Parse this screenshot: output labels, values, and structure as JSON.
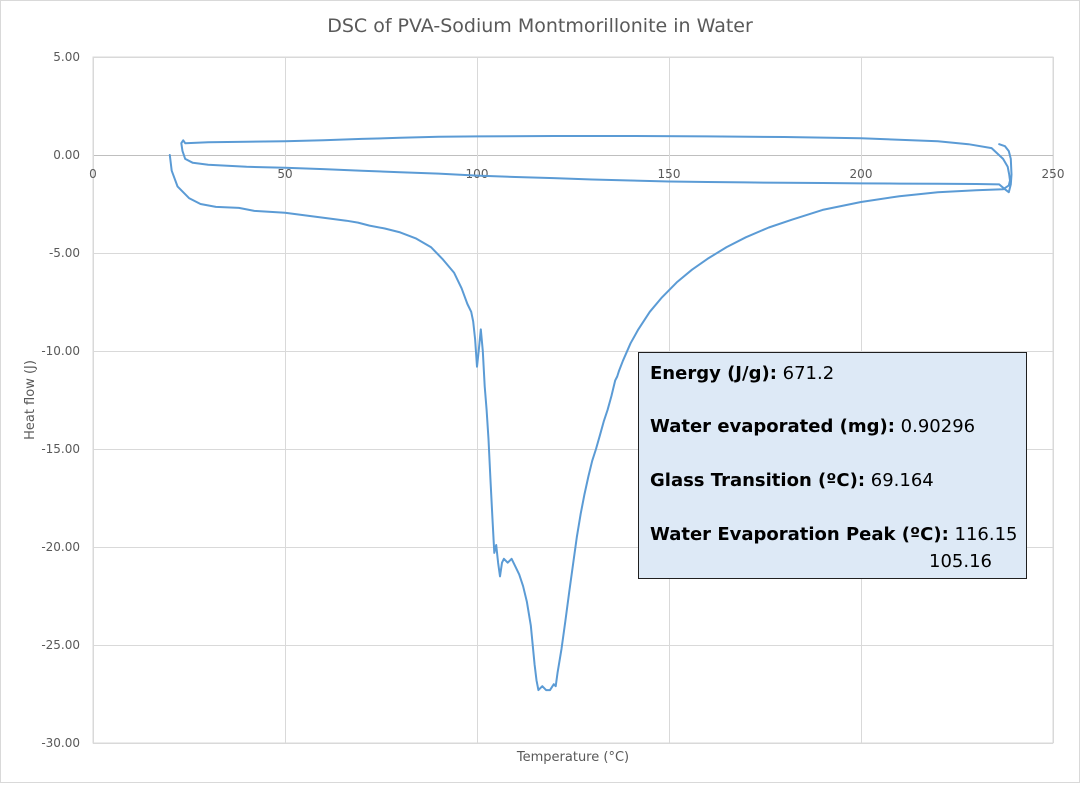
{
  "chart_data": {
    "type": "line",
    "title": "DSC of PVA-Sodium Montmorillonite in Water",
    "xlabel": "Temperature (°C)",
    "ylabel": "Heat flow (J)",
    "xlim": [
      0,
      250
    ],
    "ylim": [
      -30,
      5
    ],
    "x_ticks": [
      0,
      50,
      100,
      150,
      200,
      250
    ],
    "y_ticks": [
      5,
      0,
      -5,
      -10,
      -15,
      -20,
      -25,
      -30
    ],
    "y_tick_labels": [
      "5.00",
      "0.00",
      "-5.00",
      "-10.00",
      "-15.00",
      "-20.00",
      "-25.00",
      "-30.00"
    ],
    "grid": true,
    "line_color": "#5b9bd5",
    "series": [
      {
        "points": [
          [
            20,
            0
          ],
          [
            20.5,
            -0.8
          ],
          [
            22,
            -1.6
          ],
          [
            25,
            -2.2
          ],
          [
            28,
            -2.5
          ],
          [
            32,
            -2.65
          ],
          [
            38,
            -2.7
          ],
          [
            42,
            -2.85
          ],
          [
            50,
            -2.95
          ],
          [
            56,
            -3.1
          ],
          [
            62,
            -3.25
          ],
          [
            66,
            -3.35
          ],
          [
            69,
            -3.45
          ],
          [
            72,
            -3.6
          ],
          [
            76,
            -3.75
          ],
          [
            80,
            -3.95
          ],
          [
            84,
            -4.25
          ],
          [
            88,
            -4.7
          ],
          [
            91,
            -5.3
          ],
          [
            94,
            -6.0
          ],
          [
            96,
            -6.8
          ],
          [
            97.5,
            -7.6
          ],
          [
            98.5,
            -8.0
          ],
          [
            99,
            -8.5
          ],
          [
            99.5,
            -9.4
          ],
          [
            100,
            -10.8
          ],
          [
            100.5,
            -9.9
          ],
          [
            101,
            -8.9
          ],
          [
            101.5,
            -10.0
          ],
          [
            102,
            -11.8
          ],
          [
            102.5,
            -13.0
          ],
          [
            103,
            -14.5
          ],
          [
            103.5,
            -16.5
          ],
          [
            104,
            -18.5
          ],
          [
            104.5,
            -20.3
          ],
          [
            105,
            -19.9
          ],
          [
            105.5,
            -20.8
          ],
          [
            106,
            -21.5
          ],
          [
            106.5,
            -20.8
          ],
          [
            107,
            -20.6
          ],
          [
            108,
            -20.8
          ],
          [
            109,
            -20.6
          ],
          [
            110,
            -21.0
          ],
          [
            111,
            -21.4
          ],
          [
            112,
            -22.0
          ],
          [
            113,
            -22.8
          ],
          [
            114,
            -24.0
          ],
          [
            114.5,
            -25.0
          ],
          [
            115,
            -26.0
          ],
          [
            115.5,
            -26.8
          ],
          [
            116,
            -27.3
          ],
          [
            116.5,
            -27.2
          ],
          [
            117,
            -27.1
          ],
          [
            118,
            -27.3
          ],
          [
            119,
            -27.3
          ],
          [
            120,
            -27.0
          ],
          [
            120.5,
            -27.1
          ],
          [
            121,
            -26.4
          ],
          [
            122,
            -25.2
          ],
          [
            123,
            -23.8
          ],
          [
            124,
            -22.3
          ],
          [
            125,
            -20.9
          ],
          [
            126,
            -19.5
          ],
          [
            127,
            -18.3
          ],
          [
            128,
            -17.3
          ],
          [
            129,
            -16.4
          ],
          [
            130,
            -15.6
          ],
          [
            131,
            -15.0
          ],
          [
            132,
            -14.3
          ],
          [
            133,
            -13.6
          ],
          [
            134,
            -13.0
          ],
          [
            135,
            -12.3
          ],
          [
            136,
            -11.5
          ],
          [
            136.5,
            -11.3
          ],
          [
            137,
            -11.0
          ],
          [
            138,
            -10.5
          ],
          [
            140,
            -9.6
          ],
          [
            142,
            -8.9
          ],
          [
            145,
            -8.0
          ],
          [
            148,
            -7.3
          ],
          [
            152,
            -6.5
          ],
          [
            156,
            -5.85
          ],
          [
            160,
            -5.3
          ],
          [
            165,
            -4.7
          ],
          [
            170,
            -4.2
          ],
          [
            176,
            -3.7
          ],
          [
            182,
            -3.3
          ],
          [
            190,
            -2.8
          ],
          [
            200,
            -2.4
          ],
          [
            210,
            -2.1
          ],
          [
            220,
            -1.9
          ],
          [
            230,
            -1.8
          ],
          [
            237,
            -1.75
          ],
          [
            238.5,
            -1.55
          ],
          [
            238.8,
            -1.3
          ],
          [
            238.6,
            -1.0
          ],
          [
            238.2,
            -0.6
          ],
          [
            237,
            -0.2
          ],
          [
            234,
            0.35
          ],
          [
            228,
            0.55
          ],
          [
            220,
            0.7
          ],
          [
            200,
            0.85
          ],
          [
            180,
            0.92
          ],
          [
            160,
            0.95
          ],
          [
            140,
            0.97
          ],
          [
            120,
            0.97
          ],
          [
            100,
            0.95
          ],
          [
            90,
            0.93
          ],
          [
            80,
            0.88
          ],
          [
            70,
            0.82
          ],
          [
            60,
            0.75
          ],
          [
            50,
            0.7
          ],
          [
            40,
            0.68
          ],
          [
            30,
            0.65
          ],
          [
            24,
            0.6
          ],
          [
            23.5,
            0.75
          ],
          [
            23,
            0.6
          ],
          [
            23.3,
            0.2
          ],
          [
            24,
            -0.2
          ],
          [
            26,
            -0.4
          ],
          [
            30,
            -0.5
          ],
          [
            35,
            -0.55
          ],
          [
            40,
            -0.6
          ],
          [
            50,
            -0.65
          ],
          [
            60,
            -0.72
          ],
          [
            70,
            -0.8
          ],
          [
            80,
            -0.88
          ],
          [
            90,
            -0.95
          ],
          [
            100,
            -1.05
          ],
          [
            110,
            -1.12
          ],
          [
            120,
            -1.18
          ],
          [
            130,
            -1.25
          ],
          [
            140,
            -1.3
          ],
          [
            150,
            -1.35
          ],
          [
            160,
            -1.38
          ],
          [
            170,
            -1.4
          ],
          [
            180,
            -1.42
          ],
          [
            190,
            -1.43
          ],
          [
            200,
            -1.45
          ],
          [
            210,
            -1.46
          ],
          [
            220,
            -1.47
          ],
          [
            230,
            -1.48
          ],
          [
            236,
            -1.5
          ],
          [
            237.5,
            -1.75
          ],
          [
            238.5,
            -1.9
          ],
          [
            239,
            -1.5
          ],
          [
            239.2,
            -1.0
          ],
          [
            239,
            -0.2
          ],
          [
            238.5,
            0.2
          ],
          [
            237.5,
            0.45
          ],
          [
            236,
            0.55
          ]
        ]
      }
    ],
    "annotation_box": {
      "background": "#dde9f6",
      "lines": [
        {
          "label": "Energy (J/g):",
          "value": "671.2"
        },
        {
          "label": "Water evaporated (mg):",
          "value": "0.90296"
        },
        {
          "label": "Glass Transition (ºC):",
          "value": "69.164"
        },
        {
          "label": "Water Evaporation Peak (ºC):",
          "value": "116.15",
          "value2": "105.16"
        }
      ]
    }
  }
}
